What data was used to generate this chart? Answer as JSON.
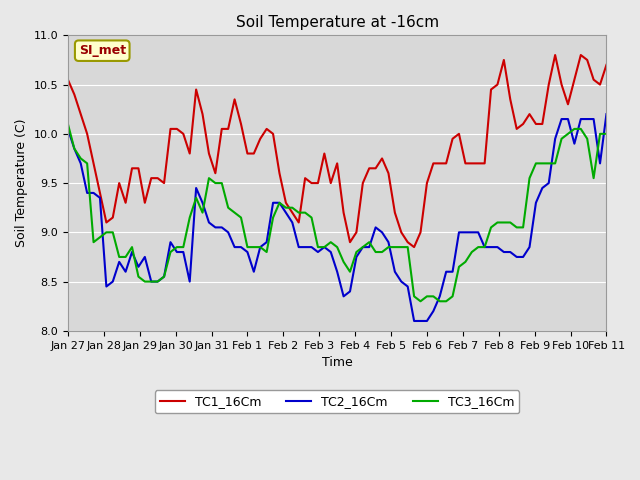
{
  "title": "Soil Temperature at -16cm",
  "xlabel": "Time",
  "ylabel": "Soil Temperature (C)",
  "ylim": [
    8.0,
    11.0
  ],
  "x_tick_labels": [
    "Jan 27",
    "Jan 28",
    "Jan 29",
    "Jan 30",
    "Jan 31",
    "Feb 1",
    "Feb 2",
    "Feb 3",
    "Feb 4",
    "Feb 5",
    "Feb 6",
    "Feb 7",
    "Feb 8",
    "Feb 9",
    "Feb 10",
    "Feb 11"
  ],
  "annotation_text": "SI_met",
  "annotation_facecolor": "#ffffcc",
  "annotation_edgecolor": "#999900",
  "annotation_textcolor": "#990000",
  "bg_color": "#e8e8e8",
  "inner_bg_color": "#d8d8d8",
  "line_colors": [
    "#cc0000",
    "#0000cc",
    "#00aa00"
  ],
  "line_labels": [
    "TC1_16Cm",
    "TC2_16Cm",
    "TC3_16Cm"
  ],
  "tc1": [
    10.55,
    10.4,
    10.2,
    10.0,
    9.7,
    9.4,
    9.1,
    9.15,
    9.5,
    9.3,
    9.65,
    9.65,
    9.3,
    9.55,
    9.55,
    9.5,
    10.05,
    10.05,
    10.0,
    9.8,
    10.45,
    10.2,
    9.8,
    9.6,
    10.05,
    10.05,
    10.35,
    10.1,
    9.8,
    9.8,
    9.95,
    10.05,
    10.0,
    9.6,
    9.3,
    9.2,
    9.1,
    9.55,
    9.5,
    9.5,
    9.8,
    9.5,
    9.7,
    9.2,
    8.9,
    9.0,
    9.5,
    9.65,
    9.65,
    9.75,
    9.6,
    9.2,
    9.0,
    8.9,
    8.85,
    9.0,
    9.5,
    9.7,
    9.7,
    9.7,
    9.95,
    10.0,
    9.7,
    9.7,
    9.7,
    9.7,
    10.45,
    10.5,
    10.75,
    10.35,
    10.05,
    10.1,
    10.2,
    10.1,
    10.1,
    10.5,
    10.8,
    10.5,
    10.3,
    10.55,
    10.8,
    10.75,
    10.55,
    10.5,
    10.7
  ],
  "tc2": [
    10.05,
    9.85,
    9.7,
    9.4,
    9.4,
    9.35,
    8.45,
    8.5,
    8.7,
    8.6,
    8.8,
    8.65,
    8.75,
    8.5,
    8.5,
    8.55,
    8.9,
    8.8,
    8.8,
    8.5,
    9.45,
    9.3,
    9.1,
    9.05,
    9.05,
    9.0,
    8.85,
    8.85,
    8.8,
    8.6,
    8.85,
    8.9,
    9.3,
    9.3,
    9.2,
    9.1,
    8.85,
    8.85,
    8.85,
    8.8,
    8.85,
    8.8,
    8.6,
    8.35,
    8.4,
    8.75,
    8.85,
    8.85,
    9.05,
    9.0,
    8.9,
    8.6,
    8.5,
    8.45,
    8.1,
    8.1,
    8.1,
    8.2,
    8.35,
    8.6,
    8.6,
    9.0,
    9.0,
    9.0,
    9.0,
    8.85,
    8.85,
    8.85,
    8.8,
    8.8,
    8.75,
    8.75,
    8.85,
    9.3,
    9.45,
    9.5,
    9.95,
    10.15,
    10.15,
    9.9,
    10.15,
    10.15,
    10.15,
    9.7,
    10.2
  ],
  "tc3": [
    10.1,
    9.85,
    9.75,
    9.7,
    8.9,
    8.95,
    9.0,
    9.0,
    8.75,
    8.75,
    8.85,
    8.55,
    8.5,
    8.5,
    8.5,
    8.55,
    8.8,
    8.85,
    8.85,
    9.15,
    9.35,
    9.2,
    9.55,
    9.5,
    9.5,
    9.25,
    9.2,
    9.15,
    8.85,
    8.85,
    8.85,
    8.8,
    9.15,
    9.3,
    9.25,
    9.25,
    9.2,
    9.2,
    9.15,
    8.85,
    8.85,
    8.9,
    8.85,
    8.7,
    8.6,
    8.8,
    8.85,
    8.9,
    8.8,
    8.8,
    8.85,
    8.85,
    8.85,
    8.85,
    8.35,
    8.3,
    8.35,
    8.35,
    8.3,
    8.3,
    8.35,
    8.65,
    8.7,
    8.8,
    8.85,
    8.85,
    9.05,
    9.1,
    9.1,
    9.1,
    9.05,
    9.05,
    9.55,
    9.7,
    9.7,
    9.7,
    9.7,
    9.95,
    10.0,
    10.05,
    10.05,
    9.95,
    9.55,
    10.0,
    10.0
  ]
}
